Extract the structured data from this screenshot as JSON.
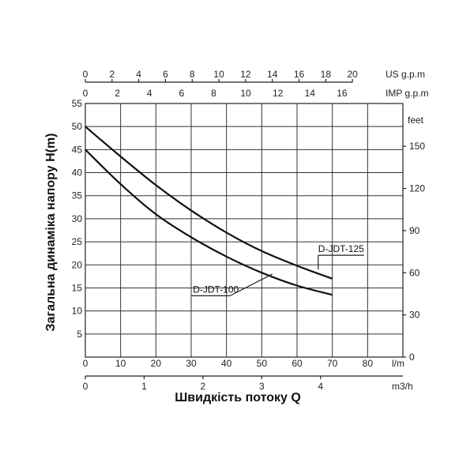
{
  "chart_data": {
    "type": "line",
    "xlabel": "Швидкість потоку Q",
    "ylabel": "Загальна динаміка напору H(m)",
    "x": [
      0,
      10,
      20,
      30,
      40,
      50,
      60,
      70
    ],
    "x_unit": "l/m",
    "xlim": [
      0,
      90
    ],
    "x_ticks": [
      0,
      10,
      20,
      30,
      40,
      50,
      60,
      70,
      80
    ],
    "ylim": [
      0,
      55
    ],
    "y_ticks": [
      0,
      5,
      10,
      15,
      20,
      25,
      30,
      35,
      40,
      45,
      50,
      55
    ],
    "grid": true,
    "series": [
      {
        "name": "D-JDT-125",
        "values": [
          50.0,
          43.5,
          37.3,
          31.8,
          27.0,
          23.0,
          19.8,
          17.0
        ]
      },
      {
        "name": "D-JDT-100",
        "values": [
          45.0,
          37.5,
          31.0,
          26.0,
          21.8,
          18.3,
          15.5,
          13.5
        ]
      }
    ],
    "secondary_axes": {
      "right": {
        "label": "feet",
        "ticks": [
          0,
          30,
          60,
          90,
          120,
          150
        ],
        "per_meter": 3.28084
      },
      "top_us": {
        "label": "US g.p.m",
        "ticks": [
          0,
          2,
          4,
          6,
          8,
          10,
          12,
          14,
          16,
          18,
          20
        ],
        "per_lpm": 0.264172
      },
      "top_imp": {
        "label": "IMP g.p.m",
        "ticks": [
          0,
          2,
          4,
          6,
          8,
          10,
          12,
          14,
          16
        ],
        "per_lpm": 0.219969
      },
      "bottom_m3h": {
        "label": "m3/h",
        "ticks": [
          0,
          1,
          2,
          3,
          4
        ],
        "per_lpm": 0.06
      }
    }
  }
}
